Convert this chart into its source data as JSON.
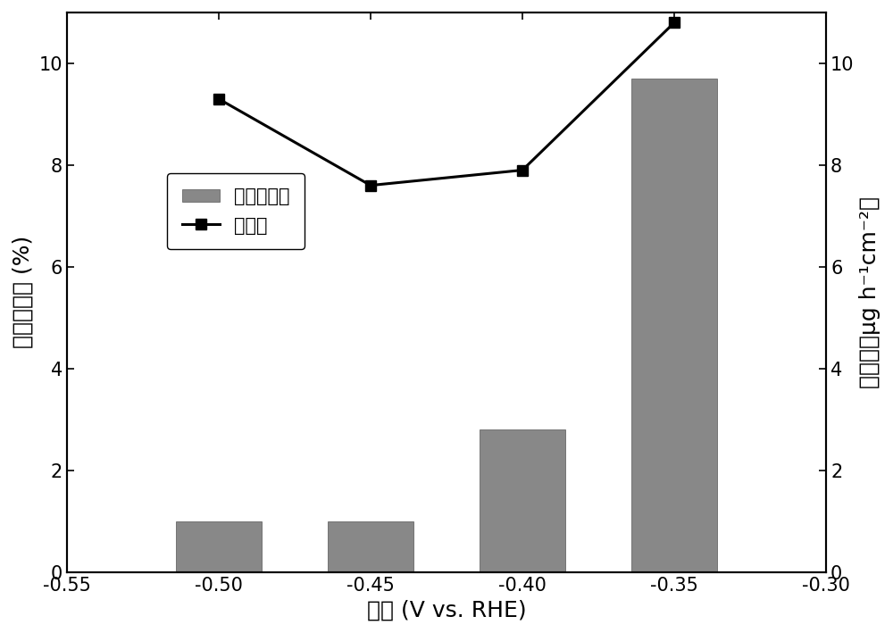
{
  "x_positions": [
    -0.5,
    -0.45,
    -0.4,
    -0.35
  ],
  "bar_values": [
    1.0,
    1.0,
    2.8,
    9.7
  ],
  "line_values": [
    9.3,
    7.6,
    7.9,
    10.8
  ],
  "bar_color": "#888888",
  "line_color": "#000000",
  "bar_width": 0.028,
  "xlim": [
    -0.55,
    -0.3
  ],
  "ylim_left": [
    0,
    11
  ],
  "ylim_right": [
    0,
    11
  ],
  "xticks": [
    -0.55,
    -0.5,
    -0.45,
    -0.4,
    -0.35,
    -0.3
  ],
  "yticks_left": [
    0,
    2,
    4,
    6,
    8,
    10
  ],
  "yticks_right": [
    0,
    2,
    4,
    6,
    8,
    10
  ],
  "xlabel": "电压 (V vs. RHE)",
  "ylabel_left": "法拉第效率 (%)",
  "ylabel_right": "氨产率（μg h⁻¹cm⁻²）",
  "legend_bar": "法拉第效率",
  "legend_line": "氨产率",
  "background_color": "#ffffff",
  "label_fontsize": 18,
  "tick_fontsize": 15,
  "legend_fontsize": 15
}
